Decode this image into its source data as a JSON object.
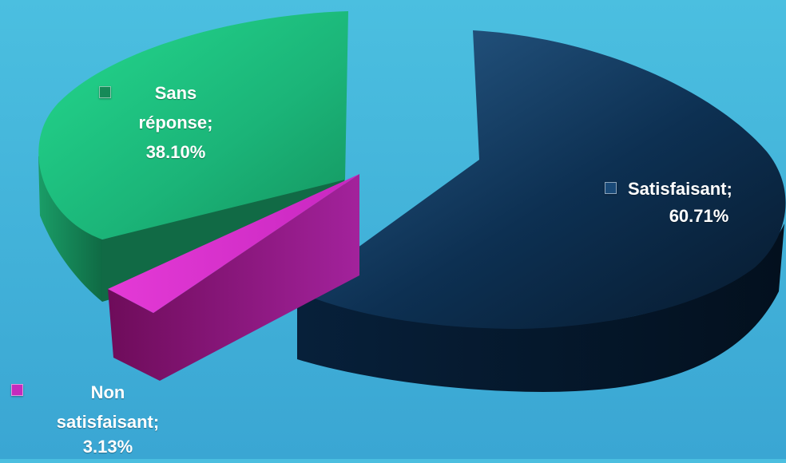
{
  "chart_data": {
    "type": "pie",
    "style": "3d-exploded",
    "slices": [
      {
        "category": "Satisfaisant",
        "value": 60.71,
        "label_name": "Satisfaisant;",
        "label_value": "60.71%",
        "color": "#0f3256"
      },
      {
        "category": "Sans réponse",
        "value": 38.1,
        "label_name_1": "Sans",
        "label_name_2": "réponse;",
        "label_value": "38.10%",
        "color": "#1aa86a"
      },
      {
        "category": "Non satisfaisant",
        "value": 3.13,
        "label_name_1": "Non",
        "label_name_2": "satisfaisant;",
        "label_value": "3.13%",
        "color": "#a82aa0"
      }
    ],
    "legend": "inline-labels"
  }
}
